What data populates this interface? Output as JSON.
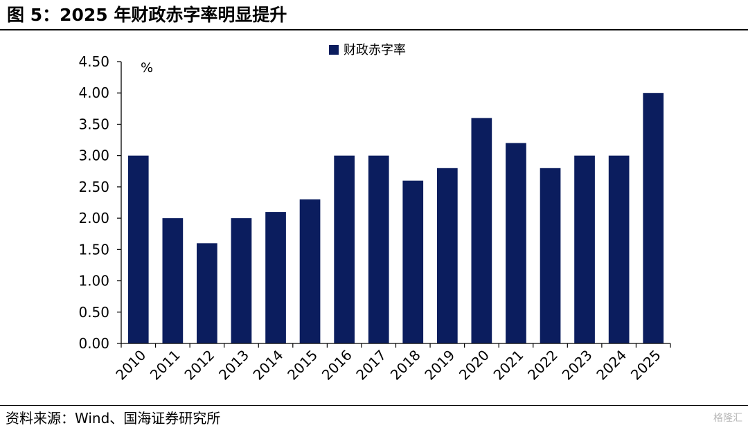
{
  "header": {
    "title": "图 5：2025 年财政赤字率明显提升"
  },
  "footer": {
    "source": "资料来源：Wind、国海证券研究所",
    "watermark": "格隆汇"
  },
  "colors": {
    "bar": "#0b1d5e",
    "axis": "#000000"
  },
  "chart_data": {
    "type": "bar",
    "title": "",
    "xlabel": "",
    "ylabel": "%",
    "ylim": [
      0,
      4.5
    ],
    "yticks": [
      "0.00",
      "0.50",
      "1.00",
      "1.50",
      "2.00",
      "2.50",
      "3.00",
      "3.50",
      "4.00",
      "4.50"
    ],
    "grid": false,
    "legend_position": "top-center",
    "categories": [
      "2010",
      "2011",
      "2012",
      "2013",
      "2014",
      "2015",
      "2016",
      "2017",
      "2018",
      "2019",
      "2020",
      "2021",
      "2022",
      "2023",
      "2024",
      "2025"
    ],
    "series": [
      {
        "name": "财政赤字率",
        "values": [
          3.0,
          2.0,
          1.6,
          2.0,
          2.1,
          2.3,
          3.0,
          3.0,
          2.6,
          2.8,
          3.6,
          3.2,
          2.8,
          3.0,
          3.0,
          4.0
        ]
      }
    ]
  }
}
